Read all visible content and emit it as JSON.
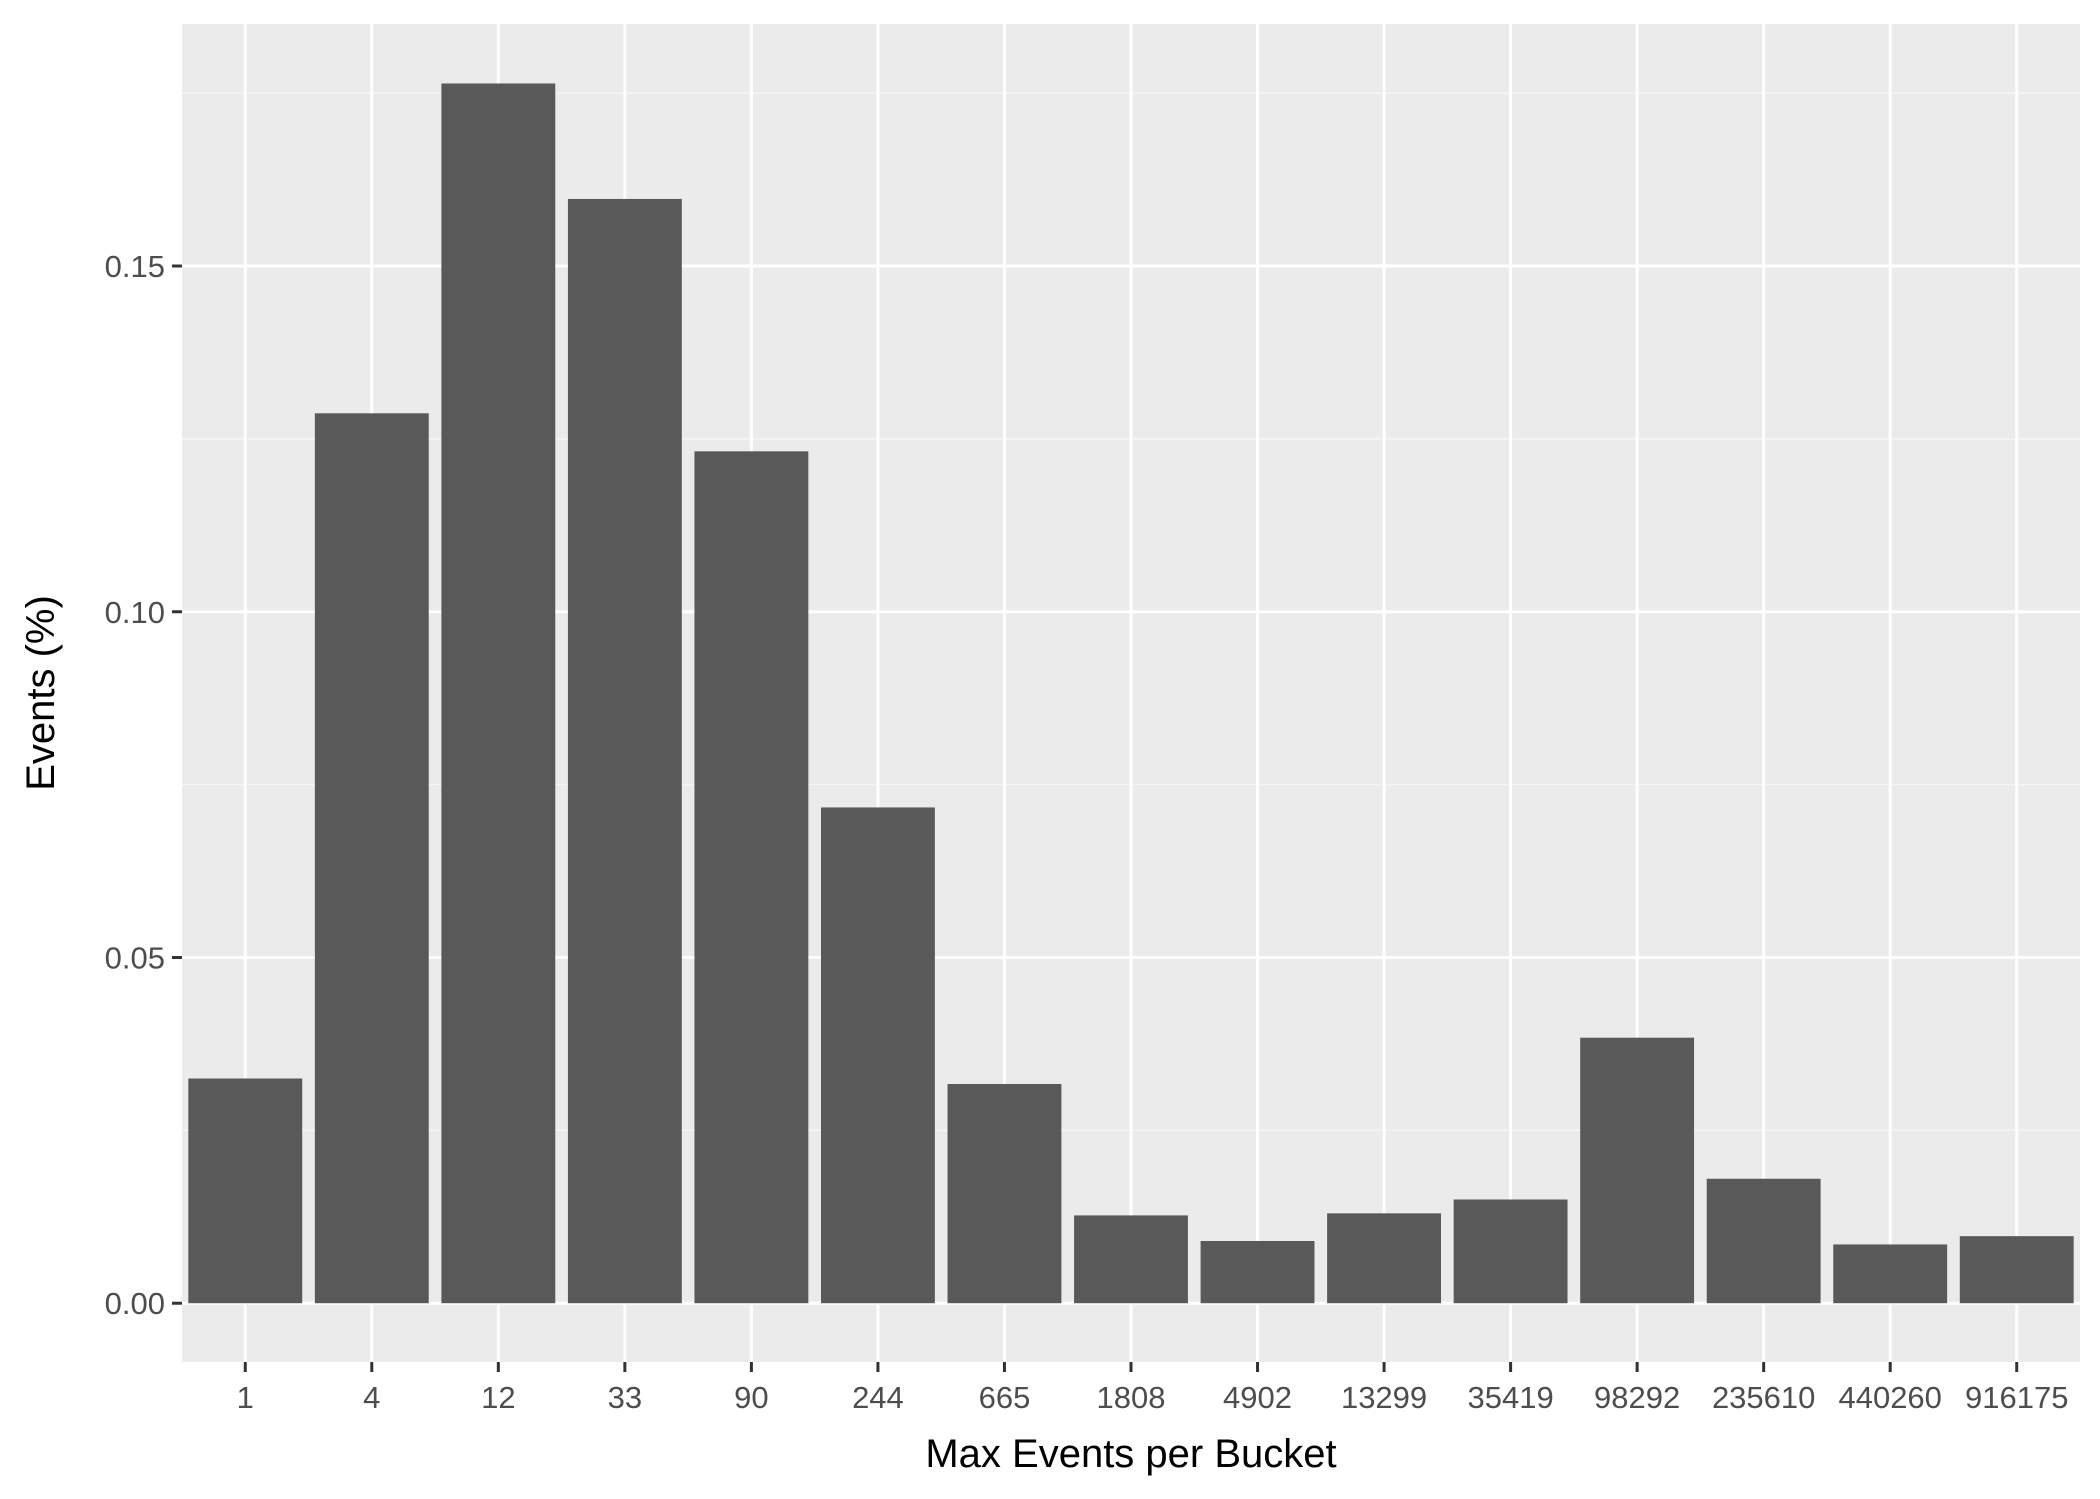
{
  "chart_data": {
    "type": "bar",
    "xlabel": "Max Events per Bucket",
    "ylabel": "Events (%)",
    "categories": [
      "1",
      "4",
      "12",
      "33",
      "90",
      "244",
      "665",
      "1808",
      "4902",
      "13299",
      "35419",
      "98292",
      "235610",
      "440260",
      "916175"
    ],
    "values": [
      0.0325,
      0.1287,
      0.1764,
      0.1597,
      0.1232,
      0.0717,
      0.0317,
      0.0127,
      0.009,
      0.013,
      0.015,
      0.0384,
      0.018,
      0.0085,
      0.0097
    ],
    "ylim": [
      -0.0085,
      0.185
    ],
    "yticks": [
      0.0,
      0.05,
      0.1,
      0.15
    ],
    "ytick_labels": [
      "0.00",
      "0.05",
      "0.10",
      "0.15"
    ],
    "grid": true,
    "legend": "none",
    "colors": {
      "bar": "#595959",
      "panel": "#ebebeb",
      "grid_major": "#ffffff",
      "grid_minor": "#f5f5f5",
      "tick_text": "#4d4d4d",
      "tick_mark": "#333333",
      "title": "#000000"
    }
  }
}
